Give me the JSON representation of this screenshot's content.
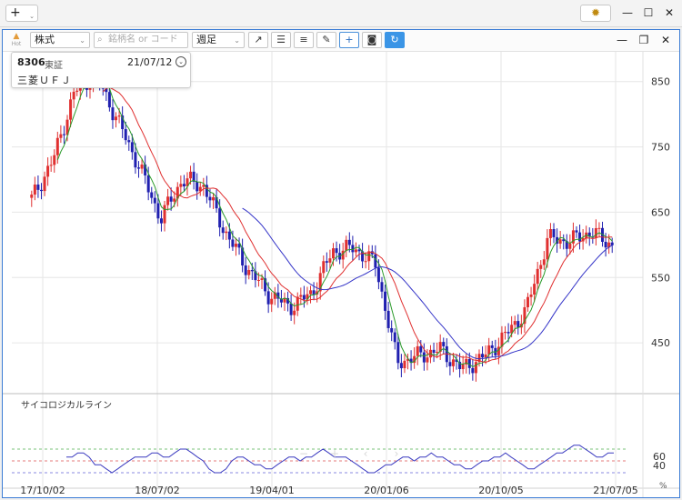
{
  "window": {
    "add_label": "+",
    "add_caret": "⌄",
    "settings_icon": "gear-icon",
    "controls": [
      "—",
      "☐",
      "✕"
    ]
  },
  "toolbar": {
    "hot_label": "Hot",
    "market_select": "株式",
    "search_placeholder": "銘柄名 or コード",
    "period_select": "週足",
    "buttons": [
      {
        "name": "trendline-tool",
        "glyph": "↗"
      },
      {
        "name": "hline-tool",
        "glyph": "☰"
      },
      {
        "name": "text-align-tool",
        "glyph": "≡"
      },
      {
        "name": "pen-tool",
        "glyph": "✎"
      },
      {
        "name": "crosshair-tool",
        "glyph": "+"
      },
      {
        "name": "camera-tool",
        "glyph": "◙"
      },
      {
        "name": "refresh-tool",
        "glyph": "↻"
      }
    ],
    "pane_controls": [
      "—",
      "❐",
      "✕"
    ]
  },
  "info": {
    "code": "8306",
    "exchange": "東証",
    "date": "21/07/12",
    "name": "三菱ＵＦＪ"
  },
  "chart_data": {
    "type": "candlestick",
    "price_ticks": [
      850,
      750,
      650,
      550,
      450
    ],
    "price_range": [
      375,
      890
    ],
    "x_labels": [
      "17/10/02",
      "18/07/02",
      "19/04/01",
      "20/01/06",
      "20/10/05",
      "21/07/05"
    ],
    "close_points": [
      [
        "17/10/02",
        670
      ],
      [
        "17/11",
        730
      ],
      [
        "18/01",
        835
      ],
      [
        "18/02",
        860
      ],
      [
        "18/03",
        790
      ],
      [
        "18/05",
        720
      ],
      [
        "18/07/02",
        640
      ],
      [
        "18/09",
        700
      ],
      [
        "18/11",
        690
      ],
      [
        "19/01",
        620
      ],
      [
        "19/04/01",
        565
      ],
      [
        "19/06",
        525
      ],
      [
        "19/08",
        505
      ],
      [
        "19/10",
        525
      ],
      [
        "19/12",
        590
      ],
      [
        "20/01/06",
        595
      ],
      [
        "20/02",
        570
      ],
      [
        "20/03",
        420
      ],
      [
        "20/05",
        430
      ],
      [
        "20/07",
        440
      ],
      [
        "20/09",
        410
      ],
      [
        "20/10/05",
        428
      ],
      [
        "20/11",
        460
      ],
      [
        "21/01",
        500
      ],
      [
        "21/03",
        610
      ],
      [
        "21/04",
        605
      ],
      [
        "21/05",
        620
      ],
      [
        "21/07/05",
        600
      ]
    ],
    "ma_short_color": "#2a9a2a",
    "ma_mid_color": "#e03030",
    "ma_long_color": "#3535c8",
    "up_color": "#e03030",
    "down_color": "#2020b0",
    "oscillator": {
      "name": "サイコロジカルライン",
      "ticks": [
        60,
        40
      ],
      "unit": "%",
      "levels": [
        75,
        50,
        25
      ],
      "values": [
        58,
        58,
        67,
        67,
        58,
        42,
        42,
        33,
        25,
        33,
        42,
        50,
        58,
        58,
        58,
        67,
        67,
        58,
        58,
        67,
        75,
        75,
        67,
        58,
        50,
        33,
        25,
        25,
        33,
        50,
        58,
        58,
        50,
        42,
        42,
        33,
        33,
        42,
        50,
        58,
        58,
        50,
        58,
        58,
        67,
        75,
        67,
        58,
        58,
        58,
        50,
        42,
        33,
        25,
        25,
        33,
        42,
        42,
        50,
        58,
        58,
        50,
        58,
        58,
        67,
        58,
        58,
        50,
        42,
        42,
        33,
        33,
        42,
        50,
        50,
        58,
        58,
        67,
        58,
        50,
        42,
        33,
        33,
        42,
        50,
        58,
        67,
        67,
        75,
        83,
        83,
        75,
        67,
        58,
        58,
        67,
        67
      ]
    },
    "nav_glyphs": [
      "−",
      "+",
      "‹",
      "›"
    ]
  }
}
